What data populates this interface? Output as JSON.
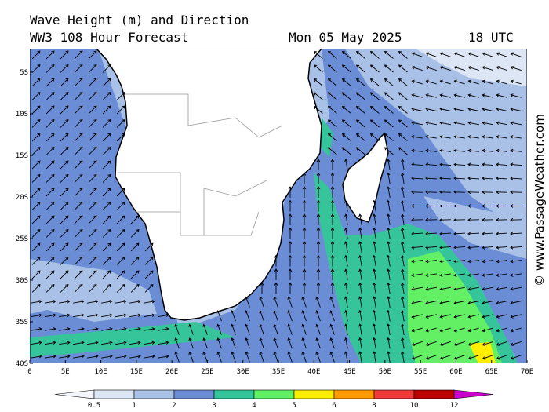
{
  "header": {
    "title": "Wave Height (m) and Direction",
    "subtitle": "WW3 108 Hour Forecast",
    "date": "Mon 05 May 2025",
    "time": "18 UTC"
  },
  "map": {
    "lat_labels": [
      "5S",
      "10S",
      "15S",
      "20S",
      "25S",
      "30S",
      "35S",
      "40S"
    ],
    "lon_labels": [
      "0",
      "5E",
      "10E",
      "15E",
      "20E",
      "25E",
      "30E",
      "35E",
      "40E",
      "45E",
      "50E",
      "55E",
      "60E",
      "65E",
      "70E"
    ]
  },
  "legend": {
    "ticks": [
      0.5,
      1,
      2,
      3,
      4,
      5,
      6,
      8,
      10,
      12
    ],
    "colors": [
      "#f4f6fb",
      "#dce6f5",
      "#a9c1e6",
      "#6a8dd6",
      "#36c49a",
      "#64f064",
      "#ffee00",
      "#ff9a00",
      "#ee3a3a",
      "#bb0000",
      "#cc00cc"
    ]
  },
  "watermark": "© www.PassageWeather.com"
}
